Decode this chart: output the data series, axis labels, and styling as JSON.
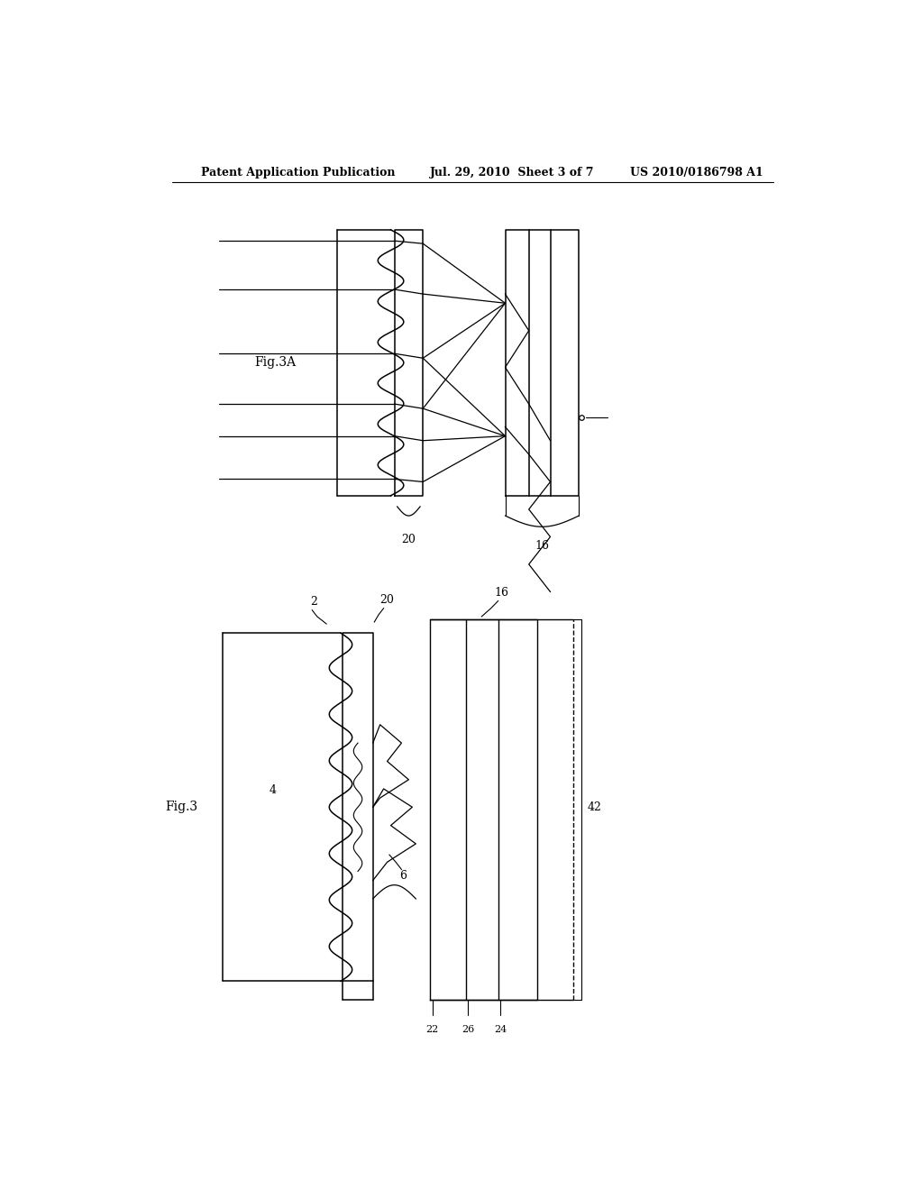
{
  "bg_color": "#ffffff",
  "line_color": "#000000",
  "header_left": "Patent Application Publication",
  "header_mid": "Jul. 29, 2010  Sheet 3 of 7",
  "header_right": "US 2010/0186798 A1",
  "fig3A_label": "Fig.3A",
  "fig3_label": "Fig.3"
}
